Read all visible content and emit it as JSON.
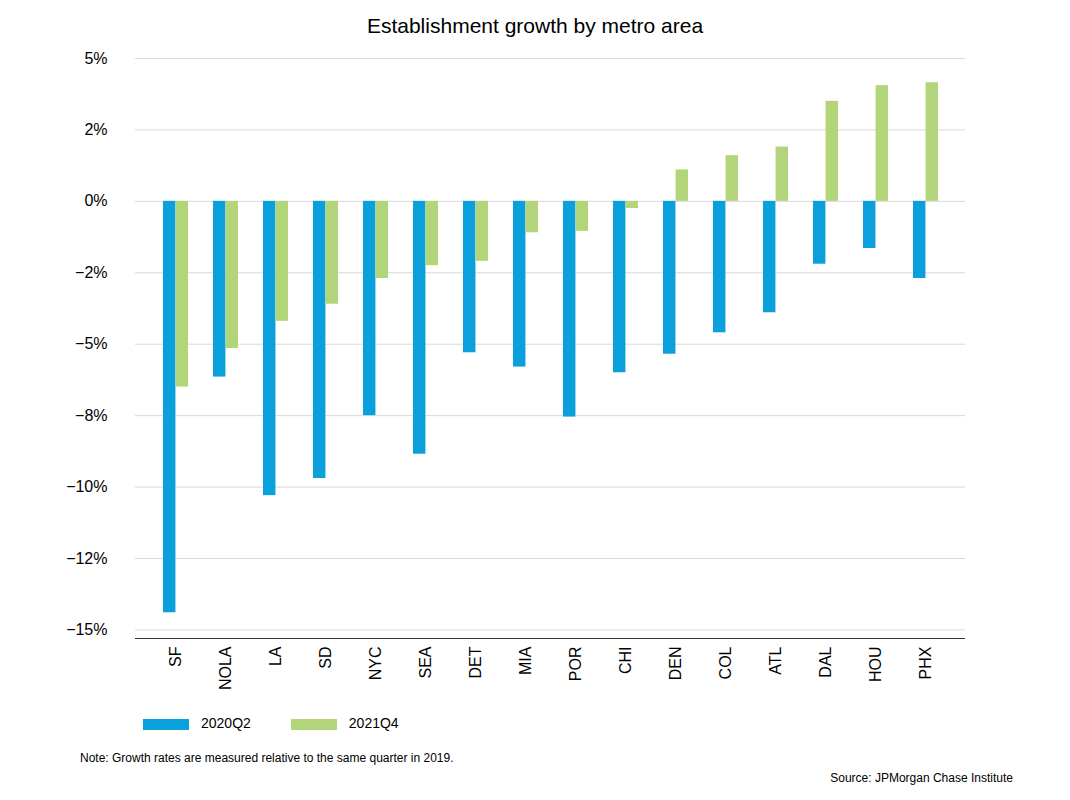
{
  "chart_data": {
    "type": "bar",
    "title": "Establishment growth by metro area",
    "note": "Note: Growth rates are measured relative to the same quarter in 2019.",
    "source": "Source: JPMorgan Chase Institute",
    "categories": [
      "SF",
      "NOLA",
      "LA",
      "SD",
      "NYC",
      "SEA",
      "DET",
      "MIA",
      "POR",
      "CHI",
      "DEN",
      "COL",
      "ATL",
      "DAL",
      "HOU",
      "PHX"
    ],
    "series": [
      {
        "name": "2020Q2",
        "color": "#0aa0dc",
        "values": [
          -14.4,
          -6.15,
          -10.3,
          -9.7,
          -7.5,
          -8.85,
          -5.3,
          -5.8,
          -7.55,
          -6.0,
          -5.35,
          -4.6,
          -3.9,
          -2.2,
          -1.65,
          -2.7
        ]
      },
      {
        "name": "2021Q4",
        "color": "#b3d57a",
        "values": [
          -6.5,
          -5.15,
          -4.2,
          -3.6,
          -2.7,
          -2.25,
          -2.1,
          -1.1,
          -1.05,
          -0.25,
          1.1,
          1.6,
          1.9,
          3.5,
          4.05,
          4.15
        ]
      }
    ],
    "ylim": [
      -15.3,
      5
    ],
    "yticks": [
      {
        "value": 5,
        "label": "5%"
      },
      {
        "value": 2.5,
        "label": "2%"
      },
      {
        "value": 0,
        "label": "0%"
      },
      {
        "value": -2.5,
        "label": "−2%"
      },
      {
        "value": -5,
        "label": "−5%"
      },
      {
        "value": -7.5,
        "label": "−8%"
      },
      {
        "value": -10,
        "label": "−10%"
      },
      {
        "value": -12.5,
        "label": "−12%"
      },
      {
        "value": -15,
        "label": "−15%"
      }
    ],
    "grid": true,
    "legend": "bottom"
  }
}
